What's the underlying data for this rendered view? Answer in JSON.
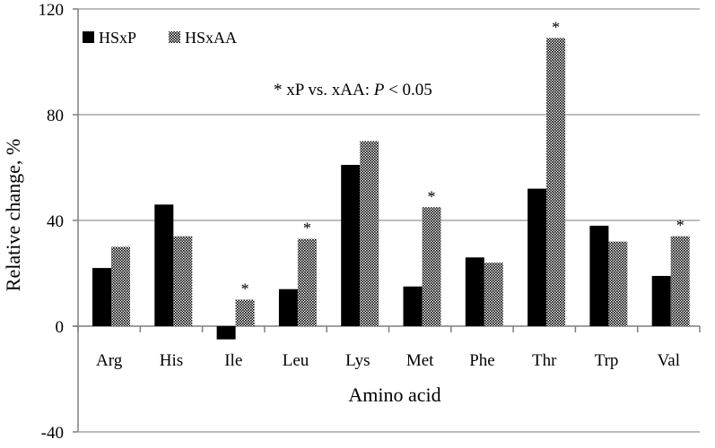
{
  "chart_data": {
    "type": "bar",
    "title": "",
    "xlabel": "Amino acid",
    "ylabel": "Relative change, %",
    "ylim": [
      -40,
      120
    ],
    "yticks": [
      -40,
      0,
      40,
      80,
      120
    ],
    "grid": true,
    "legend_position": "top-left",
    "annotation": {
      "prefix": "* xP vs. xAA: ",
      "p_symbol": "P",
      "suffix": " < 0.05"
    },
    "categories": [
      "Arg",
      "His",
      "Ile",
      "Leu",
      "Lys",
      "Met",
      "Phe",
      "Thr",
      "Trp",
      "Val"
    ],
    "series": [
      {
        "name": "HSxP",
        "fill": "solid",
        "color": "#000000",
        "values": [
          22,
          46,
          -5,
          14,
          61,
          15,
          26,
          52,
          38,
          19
        ]
      },
      {
        "name": "HSxAA",
        "fill": "dotted",
        "color": "#000000",
        "values": [
          30,
          34,
          10,
          33,
          70,
          45,
          24,
          109,
          32,
          34
        ]
      }
    ],
    "significance_marker": "*",
    "significant_categories": [
      "Ile",
      "Leu",
      "Met",
      "Thr",
      "Val"
    ]
  }
}
